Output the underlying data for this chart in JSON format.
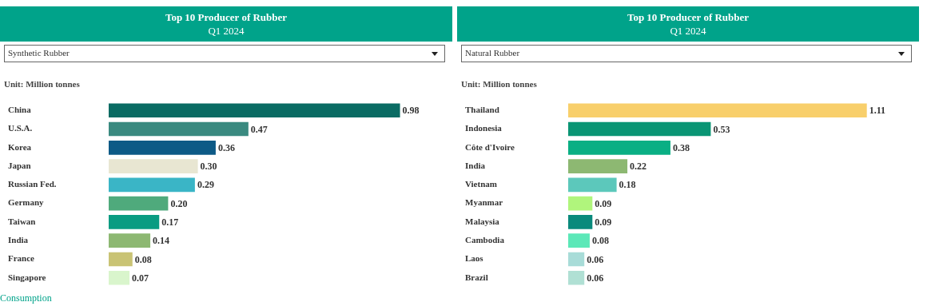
{
  "chart_data": [
    {
      "type": "bar",
      "orientation": "horizontal",
      "title": "Top 10 Producer of Rubber",
      "subtitle": "Q1 2024",
      "annotations": [
        "Synthetic Rubber",
        "Unit: Million tonnes",
        "Consumption"
      ],
      "categories": [
        "China",
        "U.S.A.",
        "Korea",
        "Japan",
        "Russian Fed.",
        "Germany",
        "Taiwan",
        "India",
        "France",
        "Singapore"
      ],
      "values": [
        0.98,
        0.47,
        0.36,
        0.3,
        0.29,
        0.2,
        0.17,
        0.14,
        0.08,
        0.07
      ],
      "value_labels": [
        "0.98",
        "0.47",
        "0.36",
        "0.30",
        "0.29",
        "0.20",
        "0.17",
        "0.14",
        "0.08",
        "0.07"
      ],
      "colors": [
        "#0a6b63",
        "#3a8a80",
        "#0d5a86",
        "#e8e6d2",
        "#3ab5c6",
        "#4faa7c",
        "#0a9c82",
        "#8db872",
        "#c9c374",
        "#d9f5cc"
      ],
      "tick_labels": "y"
    },
    {
      "type": "bar",
      "orientation": "horizontal",
      "title": "Top 10 Producer of Rubber",
      "subtitle": "Q1 2024",
      "annotations": [
        "Natural Rubber",
        "Unit: Million tonnes"
      ],
      "categories": [
        "Thailand",
        "Indonesia",
        "Côte d'Ivoire",
        "India",
        "Vietnam",
        "Myanmar",
        "Malaysia",
        "Cambodia",
        "Laos",
        "Brazil"
      ],
      "values": [
        1.11,
        0.53,
        0.38,
        0.22,
        0.18,
        0.09,
        0.09,
        0.08,
        0.06,
        0.06
      ],
      "value_labels": [
        "1.11",
        "0.53",
        "0.38",
        "0.22",
        "0.18",
        "0.09",
        "0.09",
        "0.08",
        "0.06",
        "0.06"
      ],
      "colors": [
        "#f8cf6b",
        "#0a9574",
        "#0aaf84",
        "#8db872",
        "#5cc8bb",
        "#b0f57c",
        "#0a8a7c",
        "#5ce8b8",
        "#a8dcd8",
        "#b0e0d4"
      ],
      "tick_labels": "y"
    }
  ]
}
